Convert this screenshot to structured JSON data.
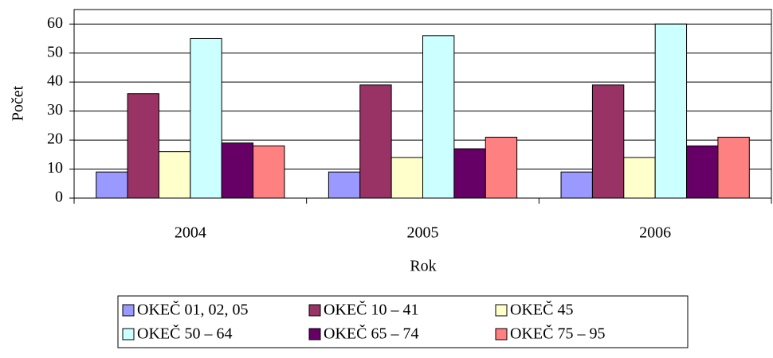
{
  "chart_data": {
    "type": "bar",
    "x_label": "Rok",
    "y_label": "Počet",
    "categories": [
      "2004",
      "2005",
      "2006"
    ],
    "series": [
      {
        "name": "OKEČ 01, 02, 05",
        "color": "#9999ff",
        "values": [
          9,
          9,
          9
        ]
      },
      {
        "name": "OKEČ 10 – 41",
        "color": "#993366",
        "values": [
          36,
          39,
          39
        ]
      },
      {
        "name": "OKEČ 45",
        "color": "#ffffcc",
        "values": [
          16,
          14,
          14
        ]
      },
      {
        "name": "OKEČ 50 – 64",
        "color": "#ccffff",
        "values": [
          55,
          56,
          60
        ]
      },
      {
        "name": "OKEČ 65 – 74",
        "color": "#660066",
        "values": [
          19,
          17,
          18
        ]
      },
      {
        "name": "OKEČ 75 – 95",
        "color": "#ff8080",
        "values": [
          18,
          21,
          21
        ]
      }
    ],
    "ylim": [
      0,
      65
    ],
    "yticks": [
      0,
      10,
      20,
      30,
      40,
      50,
      60
    ],
    "grid": true,
    "legend": "bottom"
  }
}
